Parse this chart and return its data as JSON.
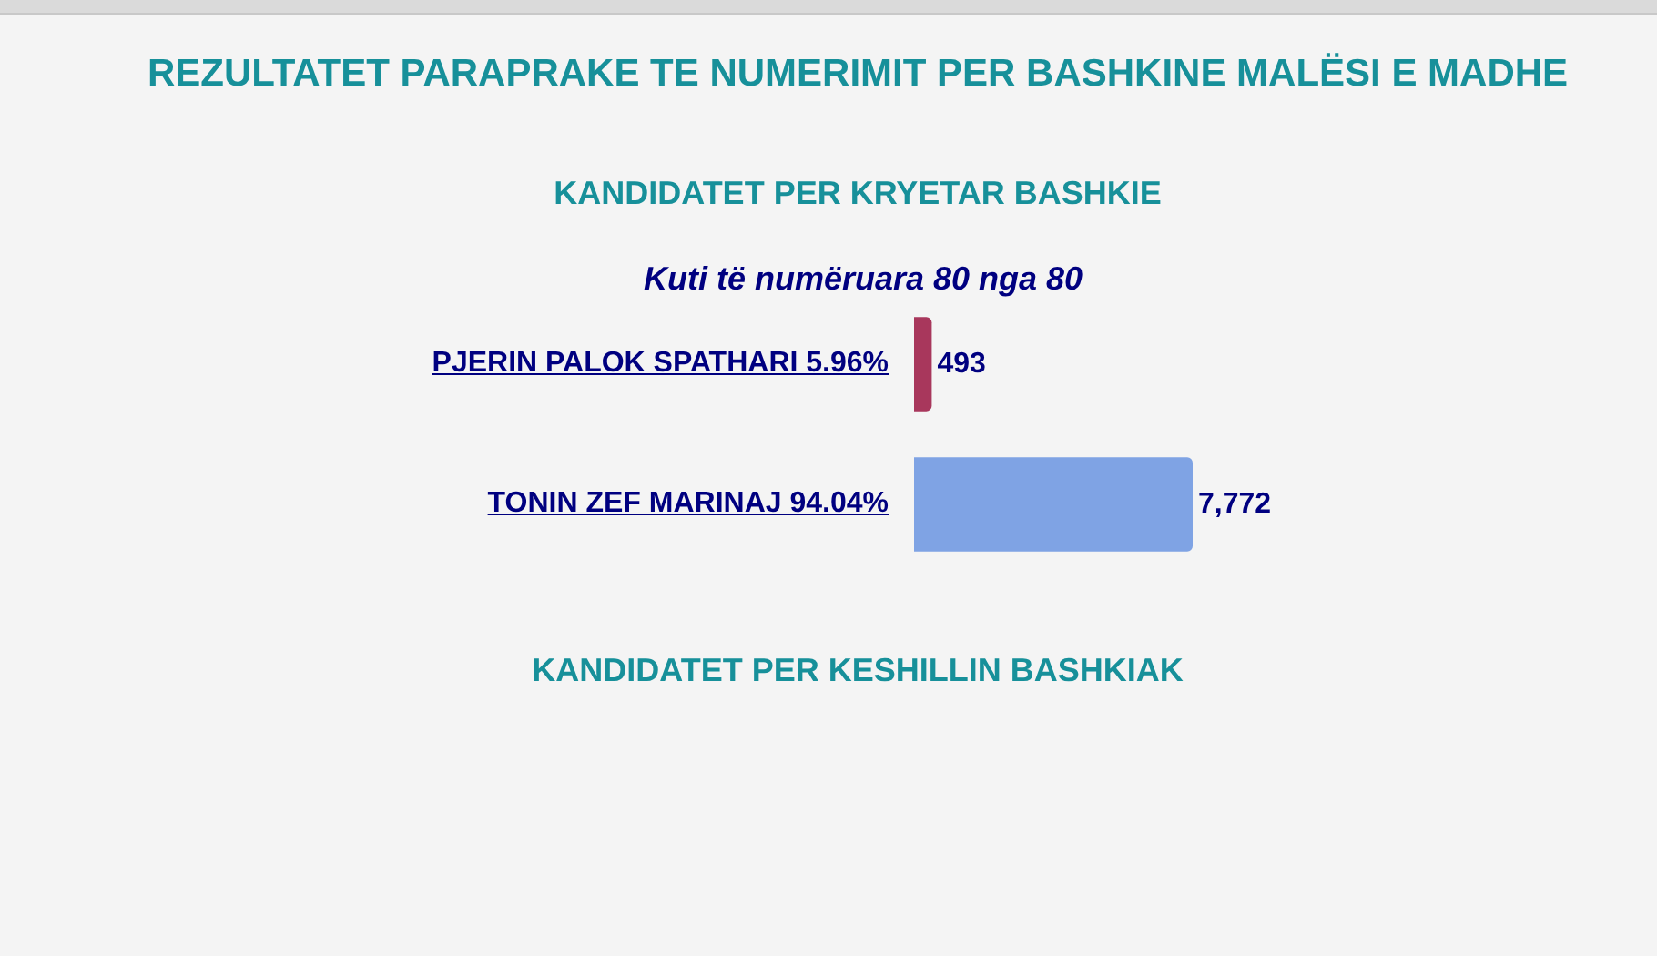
{
  "chart_data": {
    "type": "bar",
    "orientation": "horizontal",
    "title": "REZULTATET PARAPRAKE TE NUMERIMIT PER BASHKINE MALËSI E MADHE",
    "subtitle": "KANDIDATET PER KRYETAR BASHKIE",
    "annotations": [
      "Kuti të numëruara 80 nga 80",
      "KANDIDATET PER KESHILLIN BASHKIAK"
    ],
    "categories": [
      "PJERIN PALOK SPATHARI 5.96%",
      "TONIN ZEF MARINAJ 94.04%"
    ],
    "values": [
      493,
      7772
    ],
    "colors": [
      "#a8375c",
      "#7fa3e4"
    ],
    "value_labels": [
      "493",
      "7,772"
    ]
  }
}
